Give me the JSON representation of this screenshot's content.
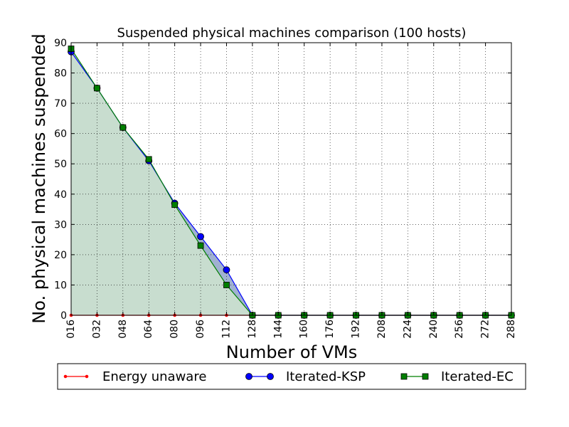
{
  "chart_data": {
    "type": "area",
    "title": "Suspended physical machines comparison (100 hosts)",
    "xlabel": "Number of VMs",
    "ylabel": "No. physical machines suspended",
    "categories": [
      "016",
      "032",
      "048",
      "064",
      "080",
      "096",
      "112",
      "128",
      "144",
      "160",
      "176",
      "192",
      "208",
      "224",
      "240",
      "256",
      "272",
      "288"
    ],
    "ylim": [
      0,
      90
    ],
    "yticks": [
      0,
      10,
      20,
      30,
      40,
      50,
      60,
      70,
      80,
      90
    ],
    "grid": true,
    "legend_position": "bottom-center",
    "series": [
      {
        "name": "Energy unaware",
        "color": "#ff0000",
        "marker": "dot",
        "fill": false,
        "values": [
          0,
          0,
          0,
          0,
          0,
          0,
          0,
          0,
          0,
          0,
          0,
          0,
          0,
          0,
          0,
          0,
          0,
          0
        ]
      },
      {
        "name": "Iterated-KSP",
        "color": "#0000ff",
        "marker": "circle",
        "fill": true,
        "fill_color": "#8fa3c9",
        "values": [
          87,
          75,
          62,
          51,
          37,
          26,
          15,
          0,
          0,
          0,
          0,
          0,
          0,
          0,
          0,
          0,
          0,
          0
        ]
      },
      {
        "name": "Iterated-EC",
        "color": "#007f00",
        "marker": "square",
        "fill": true,
        "fill_color": "#cfe5cf",
        "values": [
          88,
          75,
          62,
          51.5,
          36.5,
          23,
          10,
          0,
          0,
          0,
          0,
          0,
          0,
          0,
          0,
          0,
          0,
          0
        ]
      }
    ]
  }
}
